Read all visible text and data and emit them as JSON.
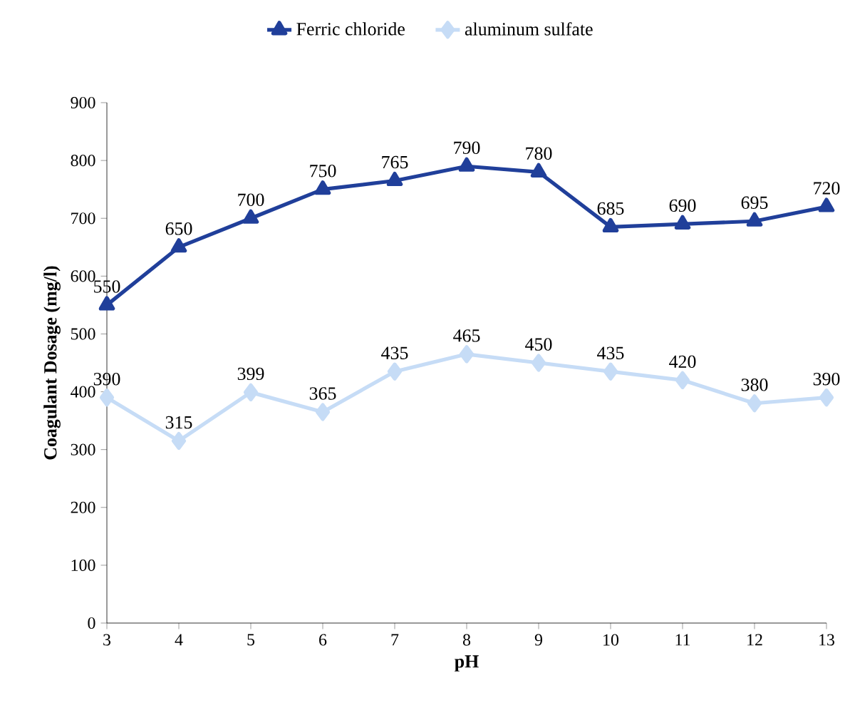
{
  "chart_data": {
    "type": "line",
    "xlabel": "pH",
    "ylabel": "Coagulant Dosage (mg/l)",
    "x": [
      3,
      4,
      5,
      6,
      7,
      8,
      9,
      10,
      11,
      12,
      13
    ],
    "series": [
      {
        "name": "Ferric chloride",
        "color": "#203f9a",
        "marker": "triangle",
        "values": [
          550,
          650,
          700,
          750,
          765,
          790,
          780,
          685,
          690,
          695,
          720
        ]
      },
      {
        "name": "aluminum sulfate",
        "color": "#c6dcf6",
        "marker": "diamond",
        "values": [
          390,
          315,
          399,
          365,
          435,
          465,
          450,
          435,
          420,
          380,
          390
        ]
      }
    ],
    "xlim": [
      3,
      13
    ],
    "xticks": [
      3,
      4,
      5,
      6,
      7,
      8,
      9,
      10,
      11,
      12,
      13
    ],
    "ylim": [
      0,
      900
    ],
    "yticks": [
      0,
      100,
      200,
      300,
      400,
      500,
      600,
      700,
      800,
      900
    ],
    "grid": false,
    "legend": "top",
    "data_labels": true,
    "line_style": "solid"
  }
}
